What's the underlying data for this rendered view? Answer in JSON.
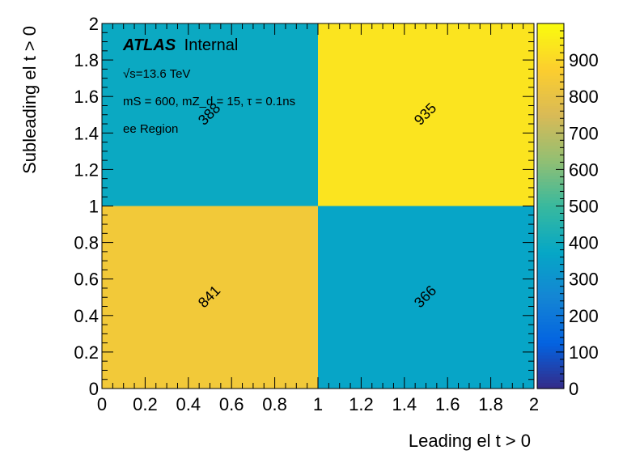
{
  "chart_data": {
    "type": "heatmap",
    "xlabel": "Leading el t > 0",
    "ylabel": "Subleading el t > 0",
    "xlim": [
      0,
      2
    ],
    "ylim": [
      0,
      2
    ],
    "x_ticks": [
      "0",
      "0.2",
      "0.4",
      "0.6",
      "0.8",
      "1",
      "1.2",
      "1.4",
      "1.6",
      "1.8",
      "2"
    ],
    "y_ticks": [
      "0",
      "0.2",
      "0.4",
      "0.6",
      "0.8",
      "1",
      "1.2",
      "1.4",
      "1.6",
      "1.8",
      "2"
    ],
    "x_bins": [
      [
        0,
        1
      ],
      [
        1,
        2
      ]
    ],
    "y_bins": [
      [
        0,
        1
      ],
      [
        1,
        2
      ]
    ],
    "cells": [
      {
        "x": 0.5,
        "y": 0.5,
        "value": 841,
        "label": "841"
      },
      {
        "x": 1.5,
        "y": 0.5,
        "value": 366,
        "label": "366"
      },
      {
        "x": 0.5,
        "y": 1.5,
        "value": 388,
        "label": "388"
      },
      {
        "x": 1.5,
        "y": 1.5,
        "value": 935,
        "label": "935"
      }
    ],
    "colorbar": {
      "zlim": [
        0,
        1000
      ],
      "ticks": [
        "0",
        "100",
        "200",
        "300",
        "400",
        "500",
        "600",
        "700",
        "800",
        "900"
      ],
      "palette": [
        "#352a87",
        "#0363e1",
        "#1485d4",
        "#06a7c6",
        "#38b99e",
        "#92bf73",
        "#d9ba56",
        "#fcce2e",
        "#f9fb0e"
      ]
    },
    "annotations": {
      "atlas_bold": "ATLAS",
      "atlas_label": "Internal",
      "energy": "√s=13.6 TeV",
      "params": "mS = 600, mZ_d = 15, τ = 0.1ns",
      "region": "ee Region"
    }
  }
}
